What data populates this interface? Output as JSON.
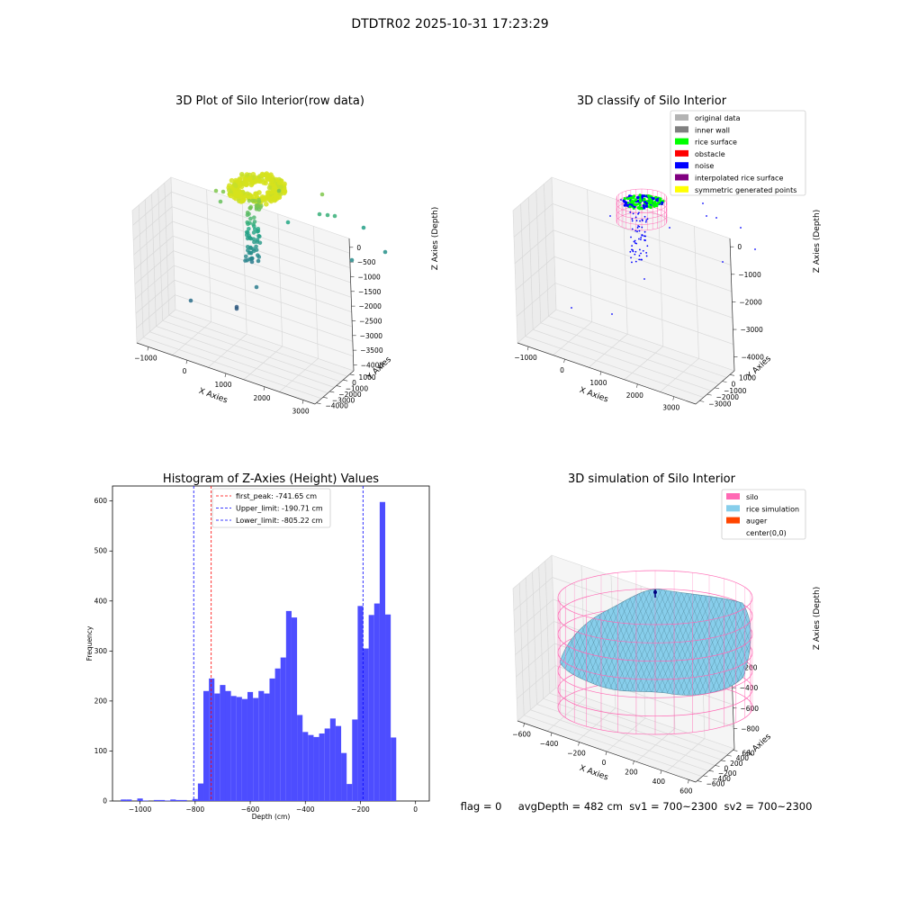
{
  "figure": {
    "suptitle": "DTDTR02 2025-10-31 17:23:29",
    "status_line": "flag = 0     avgDepth = 482 cm  sv1 = 700~2300  sv2 = 700~2300"
  },
  "colors": {
    "hist_bar": "#4d4dff",
    "first_peak": "#ff0000",
    "limit": "#0000ff",
    "silo": "#ff69b4",
    "rice": "#87ceeb",
    "auger": "#ff4500",
    "noise": "#0000ff",
    "rice_surface": "#00ff00",
    "original": "#b3b3b3",
    "inner_wall": "#808080",
    "obstacle": "#ff0000",
    "interpolated": "#800080",
    "symmetric": "#ffff00"
  },
  "chart_data": [
    {
      "type": "scatter",
      "title": "3D Plot of Silo Interior(row data)",
      "xlabel": "X Axies",
      "ylabel": "Y Axies",
      "zlabel": "Z Axies (Depth)",
      "x_ticks": [
        "−1000",
        "0",
        "1000",
        "2000",
        "3000"
      ],
      "y_ticks": [
        "−4000",
        "−3000",
        "−2000",
        "−1000",
        "0",
        "1000"
      ],
      "z_ticks": [
        "0",
        "−500",
        "−1000",
        "−1500",
        "−2000",
        "−2500",
        "−3000",
        "−3500",
        "−4000"
      ],
      "xlim": [
        -1300,
        3300
      ],
      "ylim": [
        -4200,
        1600
      ],
      "zlim": [
        -4200,
        300
      ]
    },
    {
      "type": "scatter",
      "title": "3D classify of Silo Interior",
      "xlabel": "X Axies",
      "ylabel": "Y Axies",
      "zlabel": "Z Axies (Depth)",
      "x_ticks": [
        "−1000",
        "0",
        "1000",
        "2000",
        "3000"
      ],
      "y_ticks": [
        "−3000",
        "−2000",
        "−1000",
        "0",
        "1000"
      ],
      "z_ticks": [
        "0",
        "−1000",
        "−2000",
        "−3000",
        "−4000"
      ],
      "xlim": [
        -1300,
        3600
      ],
      "ylim": [
        -3500,
        1600
      ],
      "zlim": [
        -4500,
        300
      ],
      "legend": [
        "original data",
        "inner wall",
        "rice surface",
        "obstacle",
        "noise",
        "interpolated rice surface",
        "symmetric generated points"
      ],
      "legend_location": "top-right"
    },
    {
      "type": "bar",
      "title": "Histogram of Z-Axies (Height) Values",
      "xlabel": "Depth (cm)",
      "ylabel": "Frequency",
      "xlim": [
        -1100,
        50
      ],
      "ylim": [
        0,
        630
      ],
      "x_ticks": [
        "−1000",
        "−800",
        "−600",
        "−400",
        "−200",
        "0"
      ],
      "x_tick_values": [
        -1000,
        -800,
        -600,
        -400,
        -200,
        0
      ],
      "y_ticks": [
        "0",
        "100",
        "200",
        "300",
        "400",
        "500",
        "600"
      ],
      "y_tick_values": [
        0,
        100,
        200,
        300,
        400,
        500,
        600
      ],
      "bin_edges_start": -1070,
      "bin_width": 20,
      "values": [
        3,
        3,
        0,
        5,
        1,
        0,
        2,
        2,
        1,
        3,
        2,
        2,
        0,
        4,
        35,
        220,
        245,
        215,
        232,
        220,
        210,
        208,
        204,
        218,
        206,
        220,
        215,
        245,
        265,
        287,
        380,
        367,
        172,
        138,
        132,
        128,
        135,
        145,
        165,
        150,
        96,
        34,
        163,
        390,
        305,
        372,
        395,
        598,
        373,
        127,
        0
      ],
      "vlines": [
        {
          "label": "first_peak: -741.65 cm",
          "x": -741.65,
          "color": "#ff0000"
        },
        {
          "label": "Upper_limit: -190.71 cm",
          "x": -190.71,
          "color": "#0000ff"
        },
        {
          "label": "Lower_limit: -805.22 cm",
          "x": -805.22,
          "color": "#0000ff"
        }
      ],
      "legend_location": "top-center"
    },
    {
      "type": "area",
      "title": "3D simulation of Silo Interior",
      "xlabel": "X Axies",
      "ylabel": "Y Axies",
      "zlabel": "Z Axies (Depth)",
      "x_ticks": [
        "−600",
        "−400",
        "−200",
        "0",
        "200",
        "400",
        "600"
      ],
      "y_ticks": [
        "−600",
        "−400",
        "−200",
        "0",
        "200",
        "400",
        "600"
      ],
      "z_ticks": [
        "200",
        "0",
        "−200",
        "−400",
        "−600",
        "−800"
      ],
      "xlim": [
        -650,
        650
      ],
      "ylim": [
        -650,
        650
      ],
      "zlim": [
        -1000,
        300
      ],
      "legend": [
        "silo",
        "rice simulation",
        "auger",
        "center(0,0)"
      ],
      "legend_location": "top-right"
    }
  ]
}
